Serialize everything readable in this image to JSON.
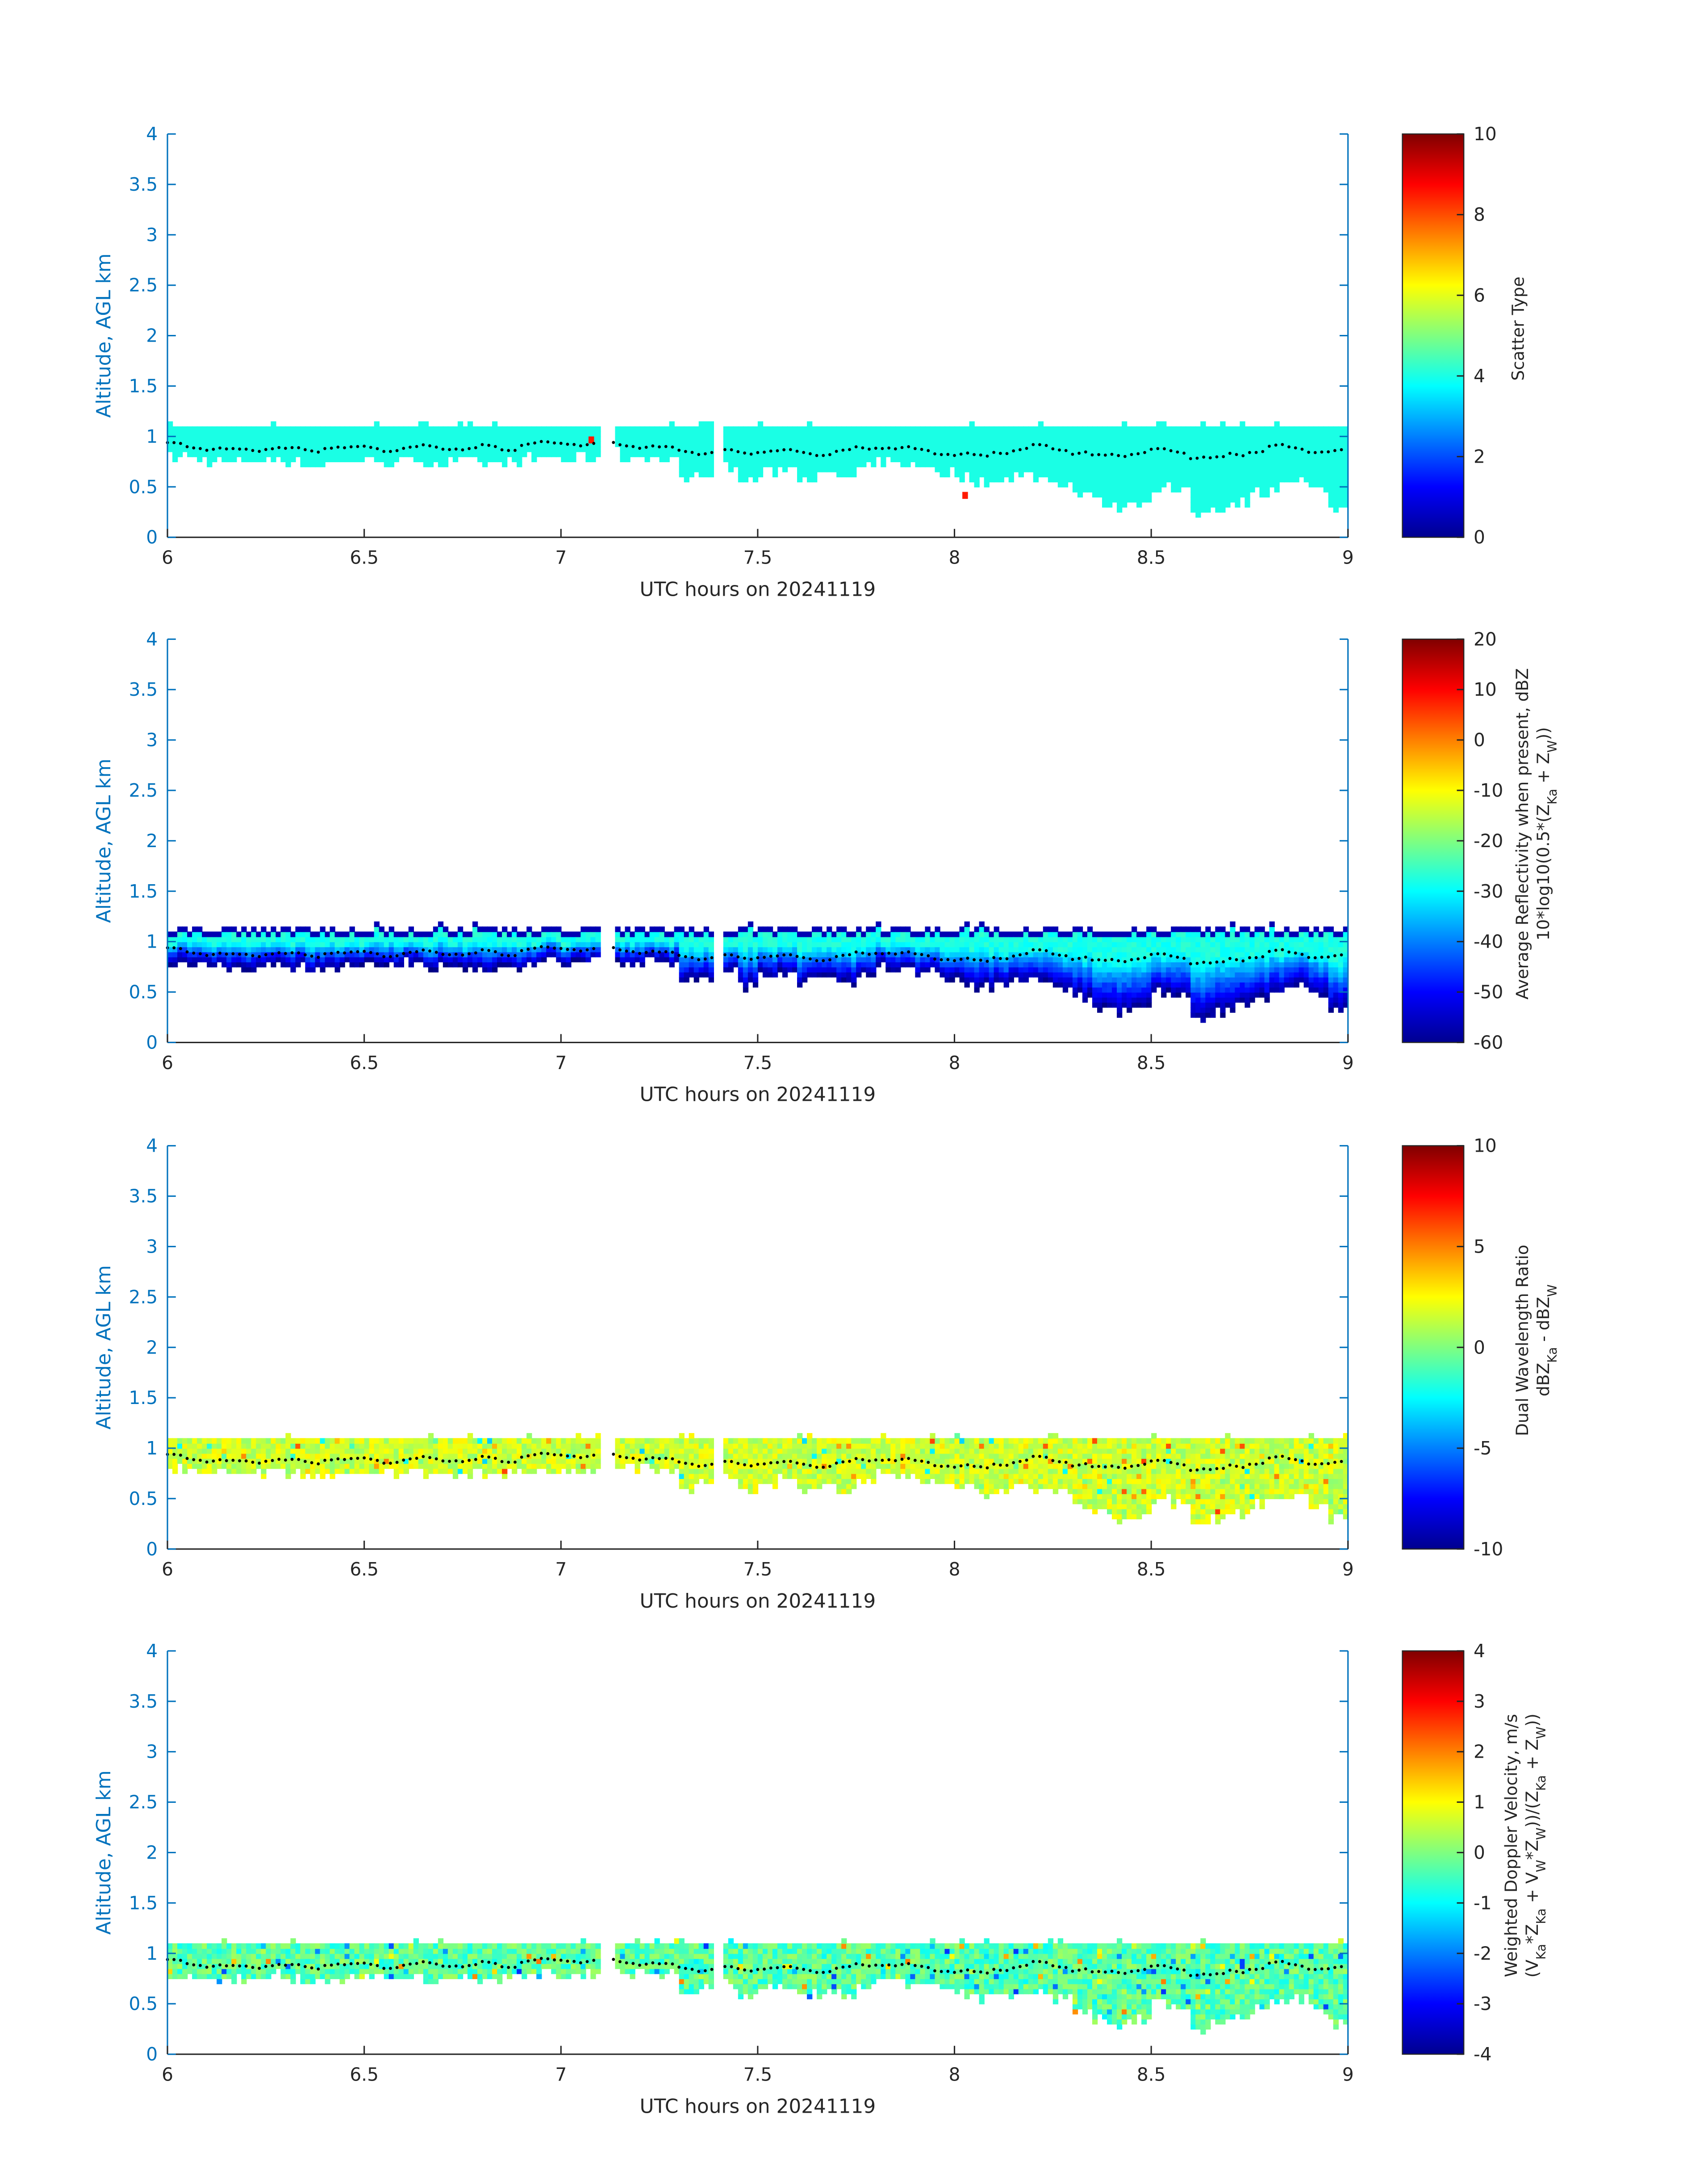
{
  "chart_data": {
    "type": "heatmap",
    "x": {
      "label": "UTC hours on 20241119",
      "range": [
        6,
        9
      ],
      "ticks": [
        "6",
        "6.5",
        "7",
        "7.5",
        "8",
        "8.5",
        "9"
      ]
    },
    "y": {
      "label": "Altitude, AGL km",
      "range": [
        0,
        4
      ],
      "ticks": [
        "0",
        "0.5",
        "1",
        "1.5",
        "2",
        "2.5",
        "3",
        "3.5",
        "4"
      ]
    },
    "time_step_hours": 0.05,
    "times_start": 6.0,
    "data_gaps_hours": [
      [
        7.1,
        7.13
      ],
      [
        7.39,
        7.41
      ]
    ],
    "cloud_top_km": 1.07,
    "cloud_base_km": [
      0.8,
      0.78,
      0.75,
      0.75,
      0.75,
      0.78,
      0.75,
      0.72,
      0.75,
      0.78,
      0.78,
      0.75,
      0.78,
      0.75,
      0.75,
      0.75,
      0.72,
      0.75,
      0.78,
      0.8,
      0.78,
      0.8,
      0.85,
      0.8,
      0.8,
      0.78,
      0.6,
      0.65,
      0.7,
      0.55,
      0.65,
      0.68,
      0.6,
      0.62,
      0.6,
      0.68,
      0.75,
      0.72,
      0.7,
      0.65,
      0.6,
      0.55,
      0.58,
      0.62,
      0.6,
      0.55,
      0.45,
      0.35,
      0.3,
      0.35,
      0.5,
      0.45,
      0.25,
      0.3,
      0.35,
      0.45,
      0.5,
      0.55,
      0.45,
      0.3
    ],
    "cloud_base_dots_km": [
      0.92,
      0.9,
      0.88,
      0.86,
      0.87,
      0.89,
      0.87,
      0.86,
      0.9,
      0.88,
      0.89,
      0.87,
      0.88,
      0.9,
      0.89,
      0.87,
      0.9,
      0.88,
      0.92,
      0.93,
      0.94,
      0.92,
      0.93,
      0.92,
      0.9,
      0.88,
      0.86,
      0.84,
      0.85,
      0.84,
      0.86,
      0.85,
      0.84,
      0.83,
      0.85,
      0.88,
      0.9,
      0.88,
      0.86,
      0.84,
      0.82,
      0.8,
      0.85,
      0.87,
      0.9,
      0.88,
      0.84,
      0.8,
      0.82,
      0.84,
      0.86,
      0.85,
      0.8,
      0.78,
      0.82,
      0.86,
      0.9,
      0.88,
      0.86,
      0.85
    ],
    "panels": [
      {
        "name": "scatter-type",
        "colorbar": {
          "min": 0,
          "max": 10,
          "ticks": [
            "10",
            "8",
            "6",
            "4",
            "2",
            "0"
          ],
          "label_lines": [
            "Scatter Type"
          ]
        },
        "typical_value": 4,
        "outliers": [
          {
            "t": 7.07,
            "alt": 0.95,
            "value": 8.5
          },
          {
            "t": 8.02,
            "alt": 0.4,
            "value": 8.5
          }
        ]
      },
      {
        "name": "reflectivity",
        "colorbar": {
          "min": -60,
          "max": 20,
          "ticks": [
            "20",
            "10",
            "0",
            "-10",
            "-20",
            "-30",
            "-40",
            "-50",
            "-60"
          ],
          "label_lines": [
            "Average Reflectivity when present, dBZ",
            "10*log10(0.5*(Z_{Ka} + Z_{W}))"
          ]
        },
        "top_value": -28,
        "base_value": -58
      },
      {
        "name": "dual-wavelength-ratio",
        "colorbar": {
          "min": -10,
          "max": 10,
          "ticks": [
            "10",
            "5",
            "0",
            "-5",
            "-10"
          ],
          "label_lines": [
            "Dual Wavelength Ratio",
            "dBZ_{Ka} - dBZ_{W}"
          ]
        },
        "typical_value": 1.5,
        "spread": 2.5
      },
      {
        "name": "doppler-velocity",
        "colorbar": {
          "min": -4,
          "max": 4,
          "ticks": [
            "4",
            "3",
            "2",
            "1",
            "0",
            "-1",
            "-2",
            "-3",
            "-4"
          ],
          "label_lines": [
            "Weighted Doppler Velocity, m/s",
            "(V_{Ka}*Z_{Ka} + V_{W}*Z_{W}))/(Z_{Ka} + Z_{W}))"
          ]
        },
        "typical_value": -0.3,
        "spread": 1.2
      }
    ]
  }
}
